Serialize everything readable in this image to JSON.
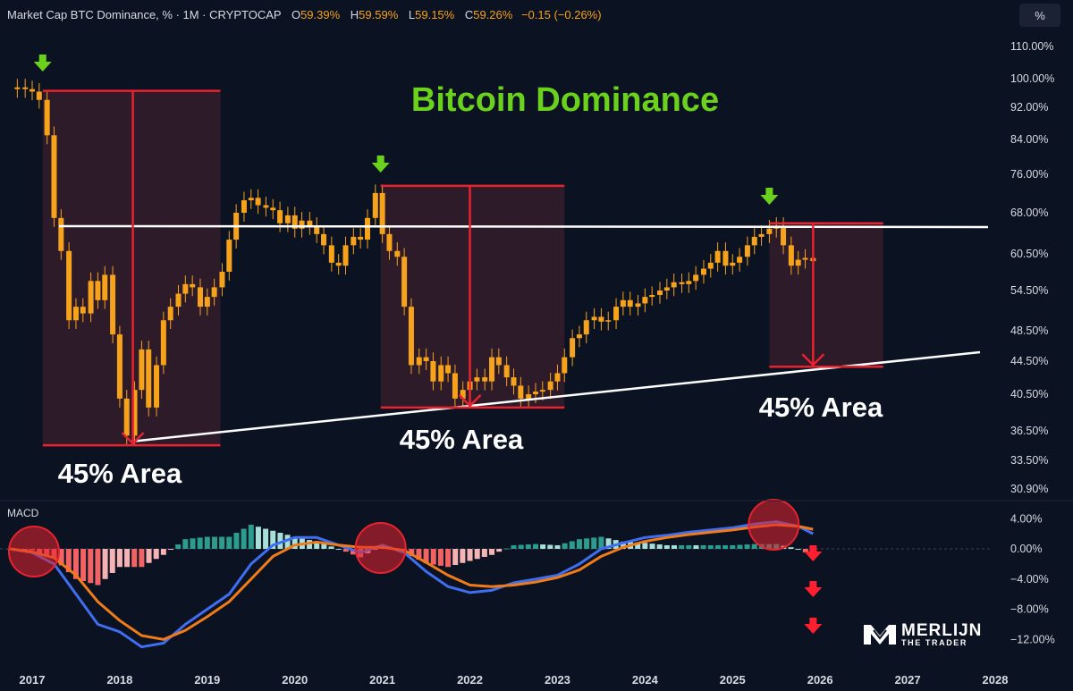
{
  "header": {
    "symbol": "Market Cap BTC Dominance, % · 1M · CRYPTOCAP",
    "open_label": "O",
    "open": "59.39%",
    "high_label": "H",
    "high": "59.59%",
    "low_label": "L",
    "low": "59.15%",
    "close_label": "C",
    "close": "59.26%",
    "change": "−0.15 (−0.26%)"
  },
  "scale_button": "%",
  "macd_label": "MACD",
  "logo": {
    "line1": "MERLIJN",
    "line2": "THE TRADER"
  },
  "colors": {
    "background": "#0b1222",
    "candle": "#f7a21b",
    "annotation_red": "#e8222e",
    "arrow_green": "#6ad21d",
    "title_green": "#6ad21d",
    "macd_line": "#3f6ff0",
    "signal_line": "#f07b1a",
    "hist_green": "#2a9d8f",
    "hist_red": "#f26464"
  },
  "chart_data": [
    {
      "type": "line",
      "title": "Bitcoin Dominance",
      "ylabel": "%",
      "log_scale": true,
      "y_ticks": [
        "110.00%",
        "100.00%",
        "92.00%",
        "84.00%",
        "76.00%",
        "68.00%",
        "60.50%",
        "54.50%",
        "48.50%",
        "44.50%",
        "40.50%",
        "36.50%",
        "33.50%",
        "30.90%"
      ],
      "x_ticks": [
        "2017",
        "2018",
        "2019",
        "2020",
        "2021",
        "2022",
        "2023",
        "2024",
        "2025",
        "2026",
        "2027",
        "2028"
      ],
      "xlim": [
        2016.75,
        2028.2
      ],
      "ylim": [
        30.0,
        115.0
      ],
      "series": [
        {
          "points": [
            [
              2016.75,
              97.0
            ],
            [
              2016.83,
              97.5
            ],
            [
              2016.92,
              97.0
            ],
            [
              2017.0,
              96.3
            ],
            [
              2017.08,
              94.0
            ],
            [
              2017.17,
              85.0
            ],
            [
              2017.25,
              67.0
            ],
            [
              2017.33,
              61.0
            ],
            [
              2017.42,
              50.0
            ],
            [
              2017.5,
              52.0
            ],
            [
              2017.58,
              51.0
            ],
            [
              2017.67,
              56.0
            ],
            [
              2017.75,
              53.0
            ],
            [
              2017.83,
              57.0
            ],
            [
              2017.92,
              48.0
            ],
            [
              2018.0,
              40.0
            ],
            [
              2018.08,
              36.0
            ],
            [
              2018.17,
              41.0
            ],
            [
              2018.25,
              46.0
            ],
            [
              2018.33,
              39.0
            ],
            [
              2018.42,
              44.0
            ],
            [
              2018.5,
              50.0
            ],
            [
              2018.58,
              52.0
            ],
            [
              2018.67,
              54.0
            ],
            [
              2018.75,
              55.5
            ],
            [
              2018.83,
              55.0
            ],
            [
              2018.92,
              52.0
            ],
            [
              2019.0,
              53.5
            ],
            [
              2019.08,
              55.0
            ],
            [
              2019.17,
              57.5
            ],
            [
              2019.25,
              63.0
            ],
            [
              2019.33,
              68.0
            ],
            [
              2019.42,
              70.5
            ],
            [
              2019.5,
              71.0
            ],
            [
              2019.58,
              69.5
            ],
            [
              2019.67,
              69.0
            ],
            [
              2019.75,
              68.5
            ],
            [
              2019.83,
              66.0
            ],
            [
              2019.92,
              67.5
            ],
            [
              2020.0,
              65.0
            ],
            [
              2020.08,
              66.5
            ],
            [
              2020.17,
              65.5
            ],
            [
              2020.25,
              64.0
            ],
            [
              2020.33,
              62.0
            ],
            [
              2020.42,
              59.0
            ],
            [
              2020.5,
              58.5
            ],
            [
              2020.58,
              62.0
            ],
            [
              2020.67,
              63.5
            ],
            [
              2020.75,
              63.0
            ],
            [
              2020.83,
              67.0
            ],
            [
              2020.92,
              72.0
            ],
            [
              2021.0,
              64.0
            ],
            [
              2021.08,
              61.0
            ],
            [
              2021.17,
              60.0
            ],
            [
              2021.25,
              52.0
            ],
            [
              2021.33,
              44.0
            ],
            [
              2021.42,
              45.0
            ],
            [
              2021.5,
              44.5
            ],
            [
              2021.58,
              42.0
            ],
            [
              2021.67,
              44.0
            ],
            [
              2021.75,
              43.0
            ],
            [
              2021.83,
              40.0
            ],
            [
              2021.92,
              41.0
            ],
            [
              2022.0,
              42.0
            ],
            [
              2022.08,
              42.5
            ],
            [
              2022.17,
              42.0
            ],
            [
              2022.25,
              45.0
            ],
            [
              2022.33,
              44.0
            ],
            [
              2022.42,
              42.5
            ],
            [
              2022.5,
              41.5
            ],
            [
              2022.58,
              40.0
            ],
            [
              2022.67,
              40.5
            ],
            [
              2022.75,
              40.8
            ],
            [
              2022.83,
              41.0
            ],
            [
              2022.92,
              42.0
            ],
            [
              2023.0,
              43.0
            ],
            [
              2023.08,
              45.0
            ],
            [
              2023.17,
              47.5
            ],
            [
              2023.25,
              48.0
            ],
            [
              2023.33,
              50.0
            ],
            [
              2023.42,
              50.5
            ],
            [
              2023.5,
              49.8
            ],
            [
              2023.58,
              50.0
            ],
            [
              2023.67,
              52.0
            ],
            [
              2023.75,
              53.0
            ],
            [
              2023.83,
              52.0
            ],
            [
              2023.92,
              52.5
            ],
            [
              2024.0,
              53.5
            ],
            [
              2024.08,
              53.8
            ],
            [
              2024.17,
              54.5
            ],
            [
              2024.25,
              55.0
            ],
            [
              2024.33,
              55.8
            ],
            [
              2024.42,
              55.5
            ],
            [
              2024.5,
              56.0
            ],
            [
              2024.58,
              57.0
            ],
            [
              2024.67,
              58.0
            ],
            [
              2024.75,
              59.0
            ],
            [
              2024.83,
              61.0
            ],
            [
              2024.92,
              58.5
            ],
            [
              2025.0,
              59.0
            ],
            [
              2025.08,
              60.0
            ],
            [
              2025.17,
              62.0
            ],
            [
              2025.25,
              63.5
            ],
            [
              2025.33,
              64.0
            ],
            [
              2025.42,
              65.0
            ],
            [
              2025.5,
              65.5
            ],
            [
              2025.58,
              62.0
            ],
            [
              2025.67,
              58.5
            ],
            [
              2025.75,
              59.5
            ],
            [
              2025.83,
              59.8
            ],
            [
              2025.92,
              59.26
            ]
          ]
        }
      ],
      "annotations": [
        "45% Area",
        "45% Area",
        "45% Area"
      ]
    },
    {
      "type": "line",
      "title": "MACD",
      "y_ticks": [
        "4.00%",
        "0.00%",
        "−4.00%",
        "−8.00%",
        "−12.00%"
      ],
      "ylim": [
        -14.5,
        6.5
      ],
      "series": [
        {
          "name_hidden": "MACD line",
          "points": [
            [
              2016.75,
              0.0
            ],
            [
              2017.0,
              -0.5
            ],
            [
              2017.25,
              -2.0
            ],
            [
              2017.5,
              -6.0
            ],
            [
              2017.75,
              -10.0
            ],
            [
              2018.0,
              -11.0
            ],
            [
              2018.25,
              -13.0
            ],
            [
              2018.5,
              -12.5
            ],
            [
              2018.75,
              -10.0
            ],
            [
              2019.0,
              -8.0
            ],
            [
              2019.25,
              -6.0
            ],
            [
              2019.5,
              -2.0
            ],
            [
              2019.75,
              0.5
            ],
            [
              2020.0,
              1.5
            ],
            [
              2020.25,
              1.5
            ],
            [
              2020.5,
              0.5
            ],
            [
              2020.75,
              -0.5
            ],
            [
              2021.0,
              0.5
            ],
            [
              2021.25,
              -0.5
            ],
            [
              2021.5,
              -3.0
            ],
            [
              2021.75,
              -5.0
            ],
            [
              2022.0,
              -5.8
            ],
            [
              2022.25,
              -5.5
            ],
            [
              2022.5,
              -4.5
            ],
            [
              2022.75,
              -4.0
            ],
            [
              2023.0,
              -3.5
            ],
            [
              2023.25,
              -2.0
            ],
            [
              2023.5,
              0.0
            ],
            [
              2023.75,
              0.8
            ],
            [
              2024.0,
              1.5
            ],
            [
              2024.25,
              1.8
            ],
            [
              2024.5,
              2.2
            ],
            [
              2024.75,
              2.5
            ],
            [
              2025.0,
              2.8
            ],
            [
              2025.25,
              3.3
            ],
            [
              2025.5,
              3.6
            ],
            [
              2025.75,
              3.0
            ],
            [
              2025.92,
              2.0
            ]
          ]
        },
        {
          "name_hidden": "Signal line",
          "points": [
            [
              2016.75,
              0.0
            ],
            [
              2017.0,
              -0.4
            ],
            [
              2017.25,
              -1.2
            ],
            [
              2017.5,
              -3.5
            ],
            [
              2017.75,
              -7.0
            ],
            [
              2018.0,
              -9.5
            ],
            [
              2018.25,
              -11.5
            ],
            [
              2018.5,
              -12.0
            ],
            [
              2018.75,
              -10.8
            ],
            [
              2019.0,
              -9.0
            ],
            [
              2019.25,
              -7.0
            ],
            [
              2019.5,
              -4.0
            ],
            [
              2019.75,
              -1.0
            ],
            [
              2020.0,
              0.5
            ],
            [
              2020.25,
              0.9
            ],
            [
              2020.5,
              0.5
            ],
            [
              2020.75,
              0.2
            ],
            [
              2021.0,
              0.2
            ],
            [
              2021.25,
              -0.2
            ],
            [
              2021.5,
              -1.8
            ],
            [
              2021.75,
              -3.5
            ],
            [
              2022.0,
              -4.8
            ],
            [
              2022.25,
              -5.0
            ],
            [
              2022.5,
              -4.8
            ],
            [
              2022.75,
              -4.4
            ],
            [
              2023.0,
              -3.8
            ],
            [
              2023.25,
              -2.8
            ],
            [
              2023.5,
              -1.0
            ],
            [
              2023.75,
              0.2
            ],
            [
              2024.0,
              1.0
            ],
            [
              2024.25,
              1.5
            ],
            [
              2024.5,
              1.9
            ],
            [
              2024.75,
              2.2
            ],
            [
              2025.0,
              2.5
            ],
            [
              2025.25,
              2.9
            ],
            [
              2025.5,
              3.2
            ],
            [
              2025.75,
              3.0
            ],
            [
              2025.92,
              2.6
            ]
          ]
        }
      ]
    }
  ]
}
